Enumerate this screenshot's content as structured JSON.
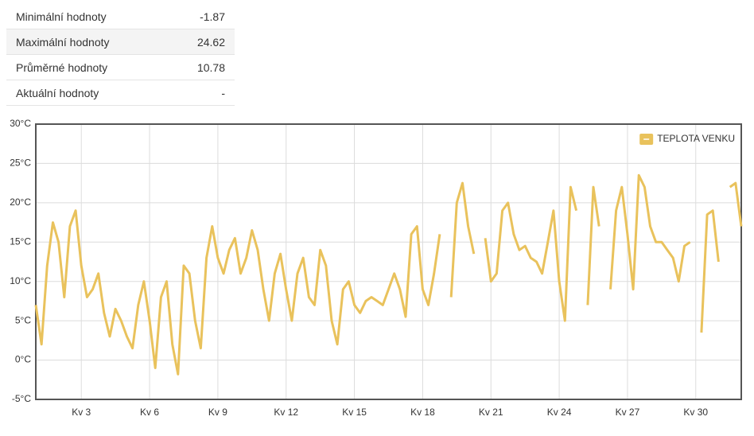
{
  "stats": {
    "rows": [
      [
        "Minimální hodnoty",
        "-1.87"
      ],
      [
        "Maximální hodnoty",
        "24.62"
      ],
      [
        "Průměrné hodnoty",
        "10.78"
      ],
      [
        "Aktuální hodnoty",
        "-"
      ]
    ]
  },
  "chart_data": {
    "type": "line",
    "x": [
      1,
      1.25,
      1.5,
      1.75,
      2,
      2.25,
      2.5,
      2.75,
      3,
      3.25,
      3.5,
      3.75,
      4,
      4.25,
      4.5,
      4.75,
      5,
      5.25,
      5.5,
      5.75,
      6,
      6.25,
      6.5,
      6.75,
      7,
      7.25,
      7.5,
      7.75,
      8,
      8.25,
      8.5,
      8.75,
      9,
      9.25,
      9.5,
      9.75,
      10,
      10.25,
      10.5,
      10.75,
      11,
      11.25,
      11.5,
      11.75,
      12,
      12.25,
      12.5,
      12.75,
      13,
      13.25,
      13.5,
      13.75,
      14,
      14.25,
      14.5,
      14.75,
      15,
      15.25,
      15.5,
      15.75,
      16,
      16.25,
      16.5,
      16.75,
      17,
      17.25,
      17.5,
      17.75,
      18,
      18.25,
      18.5,
      18.75,
      19,
      19.25,
      19.5,
      19.75,
      20,
      20.25,
      20.5,
      20.75,
      21,
      21.25,
      21.5,
      21.75,
      22,
      22.25,
      22.5,
      22.75,
      23,
      23.25,
      23.5,
      23.75,
      24,
      24.25,
      24.5,
      24.75,
      25,
      25.25,
      25.5,
      25.75,
      26,
      26.25,
      26.5,
      26.75,
      27,
      27.25,
      27.5,
      27.75,
      28,
      28.25,
      28.5,
      28.75,
      29,
      29.25,
      29.5,
      29.75,
      30,
      30.25,
      30.5,
      30.75,
      31,
      31.25,
      31.5,
      31.75,
      32
    ],
    "series": [
      {
        "name": "TEPLOTA VENKU",
        "color": "#e9c25c",
        "values": [
          7,
          2,
          12,
          17.5,
          15,
          8,
          17,
          19,
          12,
          8,
          9,
          11,
          6,
          3,
          6.5,
          5,
          3,
          1.5,
          7,
          10,
          5,
          -1,
          8,
          10,
          2,
          -1.8,
          12,
          11,
          5,
          1.5,
          13,
          17,
          13,
          11,
          14,
          15.5,
          11,
          13,
          16.5,
          14,
          9,
          5,
          11,
          13.5,
          9,
          5,
          11,
          13,
          8,
          7,
          14,
          12,
          5,
          2,
          9,
          10,
          7,
          6,
          7.5,
          8,
          7.5,
          7,
          9,
          11,
          9,
          5.5,
          16,
          17,
          9,
          7,
          11,
          16,
          null,
          8,
          20,
          22.5,
          17,
          13.5,
          null,
          15.5,
          10,
          11,
          19,
          20,
          16,
          14,
          14.5,
          13,
          12.5,
          11,
          15,
          19,
          10,
          5,
          22,
          19,
          null,
          7,
          22,
          17,
          null,
          9,
          19,
          22,
          16,
          9,
          23.5,
          22,
          17,
          15,
          15,
          14,
          13,
          10,
          14.5,
          15,
          null,
          3.5,
          18.5,
          19,
          12.5,
          null,
          22,
          22.5,
          17
        ]
      }
    ],
    "xlim": [
      1,
      32
    ],
    "xticks": [
      {
        "value": 3,
        "label": "Kv 3"
      },
      {
        "value": 6,
        "label": "Kv 6"
      },
      {
        "value": 9,
        "label": "Kv 9"
      },
      {
        "value": 12,
        "label": "Kv 12"
      },
      {
        "value": 15,
        "label": "Kv 15"
      },
      {
        "value": 18,
        "label": "Kv 18"
      },
      {
        "value": 21,
        "label": "Kv 21"
      },
      {
        "value": 24,
        "label": "Kv 24"
      },
      {
        "value": 27,
        "label": "Kv 27"
      },
      {
        "value": 30,
        "label": "Kv 30"
      }
    ],
    "ylim": [
      -5,
      30
    ],
    "yticks": [
      {
        "value": -5,
        "label": "-5°C"
      },
      {
        "value": 0,
        "label": "0°C"
      },
      {
        "value": 5,
        "label": "5°C"
      },
      {
        "value": 10,
        "label": "10°C"
      },
      {
        "value": 15,
        "label": "15°C"
      },
      {
        "value": 20,
        "label": "20°C"
      },
      {
        "value": 25,
        "label": "25°C"
      },
      {
        "value": 30,
        "label": "30°C"
      }
    ],
    "grid": true,
    "legend": "top-right"
  }
}
